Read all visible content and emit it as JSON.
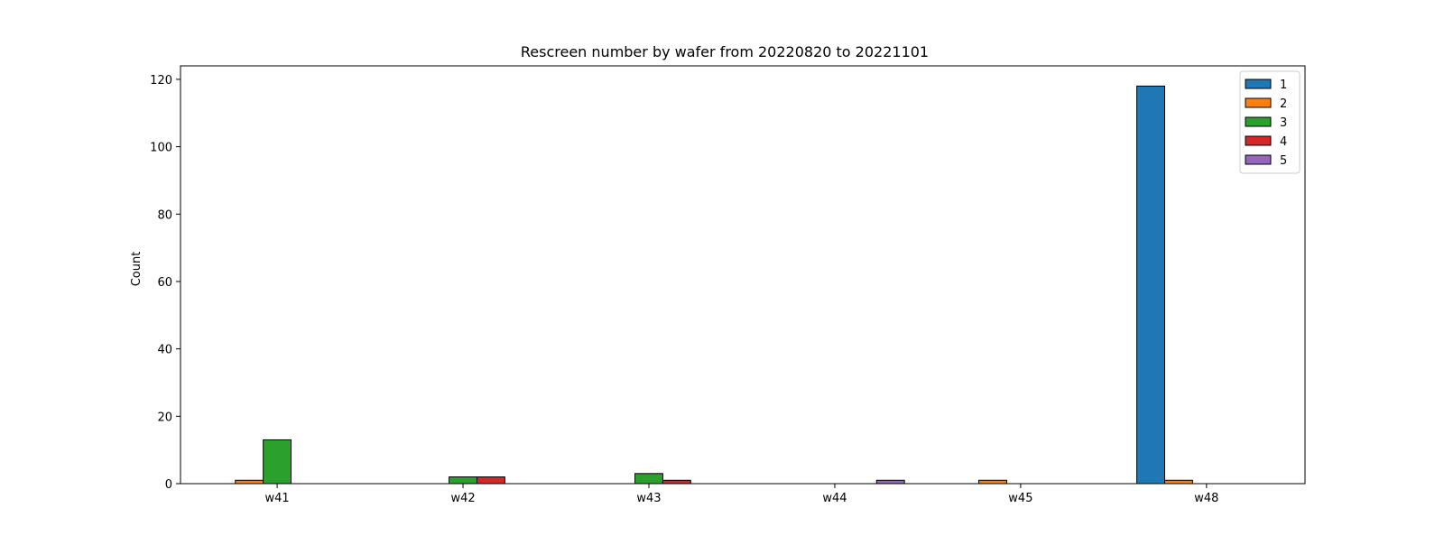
{
  "chart_data": {
    "type": "bar",
    "title": "Rescreen number  by wafer from 20220820 to 20221101",
    "xlabel": "",
    "ylabel": "Count",
    "ylim": [
      0,
      124
    ],
    "yticks": [
      0,
      20,
      40,
      60,
      80,
      100,
      120
    ],
    "categories": [
      "w41",
      "w42",
      "w43",
      "w44",
      "w45",
      "w48"
    ],
    "series": [
      {
        "name": "1",
        "color": "#1f77b4",
        "values": [
          0,
          0,
          0,
          0,
          0,
          118
        ]
      },
      {
        "name": "2",
        "color": "#ff7f0e",
        "values": [
          1,
          0,
          0,
          0,
          1,
          1
        ]
      },
      {
        "name": "3",
        "color": "#2ca02c",
        "values": [
          13,
          2,
          3,
          0,
          0,
          0
        ]
      },
      {
        "name": "4",
        "color": "#d62728",
        "values": [
          0,
          2,
          1,
          0,
          0,
          0
        ]
      },
      {
        "name": "5",
        "color": "#9467bd",
        "values": [
          0,
          0,
          0,
          1,
          0,
          0
        ]
      }
    ],
    "grid": false,
    "legend_position": "top-right"
  }
}
